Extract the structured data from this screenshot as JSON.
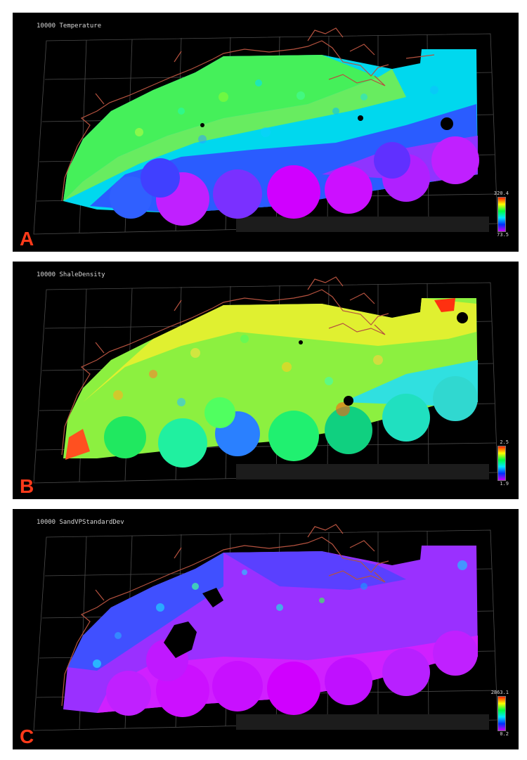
{
  "panels": [
    {
      "letter": "A",
      "title": "10000 Temperature",
      "scale_max": "320.4",
      "scale_min": "73.5",
      "scheme": "temperature"
    },
    {
      "letter": "B",
      "title": "10000 ShaleDensity",
      "scale_max": "2.5",
      "scale_min": "1.9",
      "scheme": "density"
    },
    {
      "letter": "C",
      "title": "10000 SandVPStandardDev",
      "scale_max": "2863.1",
      "scale_min": "0.2",
      "scheme": "stddev"
    }
  ],
  "colors": {
    "background": "#000000",
    "label": "#ff3a1a",
    "grid": "#9a9a9a",
    "coastline": "#b5523f",
    "colormap": [
      "#cc00ff",
      "#0030ff",
      "#00e6ff",
      "#00ff40",
      "#ffff00",
      "#ff2000"
    ]
  }
}
